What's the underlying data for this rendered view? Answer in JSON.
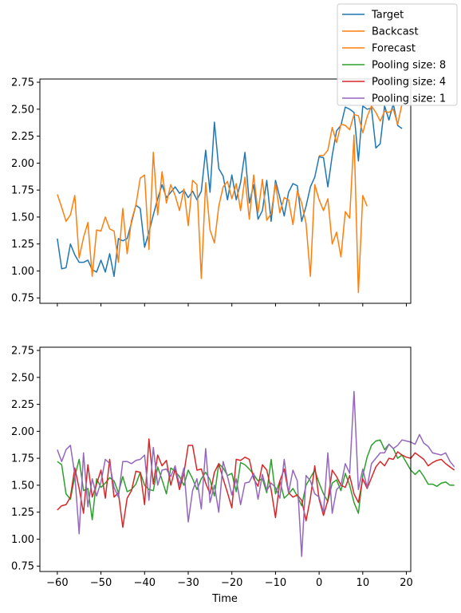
{
  "chart_data": {
    "type": "line",
    "xlabel": "Time",
    "xlim": [
      -64,
      21
    ],
    "ylim": [
      0.7,
      2.78
    ],
    "x_ticks": [
      -60,
      -50,
      -40,
      -30,
      -20,
      -10,
      0,
      10,
      20
    ],
    "x_tick_labels": [
      "−60",
      "−50",
      "−40",
      "−30",
      "−20",
      "−10",
      "0",
      "10",
      "20"
    ],
    "y_ticks": [
      0.75,
      1.0,
      1.25,
      1.5,
      1.75,
      2.0,
      2.25,
      2.5,
      2.75
    ],
    "y_tick_labels": [
      "0.75",
      "1.00",
      "1.25",
      "1.50",
      "1.75",
      "2.00",
      "2.25",
      "2.50",
      "2.75"
    ],
    "grid": false,
    "legend_position": "top-right",
    "legend": [
      {
        "name": "Target",
        "color": "#1f77b4"
      },
      {
        "name": "Backcast",
        "color": "#ff7f0e"
      },
      {
        "name": "Forecast",
        "color": "#ff7f0e"
      },
      {
        "name": "Pooling size: 8",
        "color": "#2ca02c"
      },
      {
        "name": "Pooling size: 4",
        "color": "#d62728"
      },
      {
        "name": "Pooling size: 1",
        "color": "#9467bd"
      }
    ],
    "top_panel": {
      "series": [
        {
          "name": "Target",
          "color": "#1f77b4",
          "x_start": -60,
          "values": [
            1.3,
            1.02,
            1.03,
            1.25,
            1.15,
            1.08,
            1.08,
            1.1,
            1.01,
            0.99,
            1.1,
            0.99,
            1.16,
            0.95,
            1.3,
            1.28,
            1.3,
            1.45,
            1.61,
            1.58,
            1.22,
            1.36,
            1.52,
            1.67,
            1.8,
            1.68,
            1.73,
            1.78,
            1.72,
            1.75,
            1.68,
            1.74,
            1.66,
            1.74,
            2.12,
            1.73,
            2.38,
            1.95,
            1.88,
            1.66,
            1.89,
            1.66,
            1.82,
            2.1,
            1.63,
            1.8,
            1.48,
            1.56,
            1.84,
            1.46,
            1.84,
            1.68,
            1.51,
            1.73,
            1.81,
            1.79,
            1.46,
            1.6,
            1.78,
            1.87,
            2.06,
            2.05,
            1.78,
            2.07,
            2.3,
            2.35,
            2.52,
            2.5,
            2.47,
            2.02,
            2.53,
            2.5,
            2.51,
            2.14,
            2.18,
            2.53,
            2.4,
            2.55,
            2.35,
            2.32
          ]
        },
        {
          "name": "Backcast",
          "color": "#ff7f0e",
          "x_start": -60,
          "values": [
            1.71,
            1.59,
            1.46,
            1.52,
            1.7,
            1.12,
            1.31,
            1.45,
            0.95,
            1.38,
            1.37,
            1.5,
            1.39,
            1.37,
            1.08,
            1.58,
            1.16,
            1.47,
            1.61,
            1.86,
            1.89,
            1.2,
            2.1,
            1.52,
            1.92,
            1.63,
            1.8,
            1.7,
            1.56,
            1.76,
            1.42,
            1.84,
            1.8,
            0.93,
            1.82,
            1.38,
            1.26,
            1.6,
            1.78,
            1.83,
            1.67,
            1.81,
            1.56,
            1.87,
            1.48,
            1.89,
            1.54,
            1.85,
            1.47,
            1.53,
            1.81,
            1.54,
            1.68,
            1.66,
            1.43,
            1.74,
            1.63,
            1.44,
            0.95,
            1.8,
            1.66,
            1.56,
            1.67,
            1.25,
            1.36,
            1.13,
            1.55,
            1.49,
            2.26,
            0.8,
            1.7,
            1.6
          ]
        },
        {
          "name": "Forecast",
          "color": "#ff7f0e",
          "x_start": 0,
          "values": [
            2.07,
            2.07,
            2.12,
            2.33,
            2.19,
            2.36,
            2.35,
            2.31,
            2.45,
            2.44,
            2.28,
            2.43,
            2.53,
            2.47,
            2.39,
            2.48,
            2.47,
            2.5,
            2.36,
            2.55
          ]
        }
      ]
    },
    "bottom_panel": {
      "series": [
        {
          "name": "Pooling size: 8",
          "color": "#2ca02c",
          "x_start": -60,
          "values": [
            1.72,
            1.69,
            1.42,
            1.37,
            1.58,
            1.74,
            1.45,
            1.47,
            1.18,
            1.56,
            1.48,
            1.52,
            1.57,
            1.54,
            1.43,
            1.58,
            1.44,
            1.46,
            1.51,
            1.62,
            1.5,
            1.46,
            1.45,
            1.67,
            1.55,
            1.42,
            1.66,
            1.63,
            1.58,
            1.5,
            1.64,
            1.56,
            1.46,
            1.56,
            1.62,
            1.55,
            1.4,
            1.7,
            1.66,
            1.59,
            1.61,
            1.44,
            1.71,
            1.69,
            1.65,
            1.6,
            1.54,
            1.56,
            1.43,
            1.74,
            1.42,
            1.54,
            1.38,
            1.42,
            1.47,
            1.4,
            1.31,
            1.5,
            1.57,
            1.64,
            1.52,
            1.42,
            1.35,
            1.52,
            1.55,
            1.45,
            1.61,
            1.5,
            1.34,
            1.24,
            1.59,
            1.76,
            1.87,
            1.91,
            1.92,
            1.83,
            1.88,
            1.84,
            1.75,
            1.78,
            1.71,
            1.64,
            1.6,
            1.64,
            1.58,
            1.51,
            1.51,
            1.49,
            1.52,
            1.53,
            1.5,
            1.5
          ]
        },
        {
          "name": "Pooling size: 4",
          "color": "#d62728",
          "x_start": -60,
          "values": [
            1.27,
            1.31,
            1.32,
            1.39,
            1.66,
            1.47,
            1.24,
            1.69,
            1.39,
            1.51,
            1.64,
            1.38,
            1.74,
            1.39,
            1.43,
            1.11,
            1.38,
            1.45,
            1.63,
            1.62,
            1.32,
            1.93,
            1.51,
            1.78,
            1.68,
            1.73,
            1.5,
            1.65,
            1.46,
            1.61,
            1.87,
            1.87,
            1.64,
            1.65,
            1.52,
            1.42,
            1.62,
            1.7,
            1.56,
            1.43,
            1.29,
            1.74,
            1.73,
            1.76,
            1.74,
            1.56,
            1.49,
            1.69,
            1.64,
            1.46,
            1.2,
            1.54,
            1.65,
            1.43,
            1.39,
            1.41,
            1.36,
            1.17,
            1.38,
            1.68,
            1.37,
            1.22,
            1.36,
            1.64,
            1.58,
            1.5,
            1.48,
            1.59,
            1.42,
            1.34,
            1.56,
            1.47,
            1.57,
            1.67,
            1.72,
            1.68,
            1.75,
            1.74,
            1.81,
            1.78,
            1.76,
            1.75,
            1.8,
            1.77,
            1.74,
            1.68,
            1.71,
            1.73,
            1.74,
            1.7,
            1.67,
            1.64
          ]
        },
        {
          "name": "Pooling size: 1",
          "color": "#9467bd",
          "x_start": -60,
          "values": [
            1.83,
            1.72,
            1.83,
            1.87,
            1.6,
            1.05,
            1.8,
            1.3,
            1.56,
            1.4,
            1.53,
            1.74,
            1.7,
            1.48,
            1.39,
            1.72,
            1.72,
            1.7,
            1.73,
            1.74,
            1.78,
            1.36,
            1.85,
            1.5,
            1.64,
            1.65,
            1.58,
            1.68,
            1.5,
            1.66,
            1.16,
            1.45,
            1.56,
            1.28,
            1.84,
            1.34,
            1.5,
            1.25,
            1.72,
            1.58,
            1.41,
            1.56,
            1.32,
            1.52,
            1.53,
            1.61,
            1.37,
            1.6,
            1.45,
            1.52,
            1.48,
            1.38,
            1.74,
            1.43,
            1.64,
            1.54,
            0.84,
            1.59,
            1.54,
            1.42,
            1.39,
            1.25,
            1.8,
            1.24,
            1.46,
            1.5,
            1.7,
            1.61,
            2.37,
            1.46,
            1.65,
            1.48,
            1.7,
            1.75,
            1.8,
            1.8,
            1.88,
            1.84,
            1.87,
            1.92,
            1.91,
            1.9,
            1.88,
            1.97,
            1.89,
            1.86,
            1.8,
            1.79,
            1.78,
            1.8,
            1.72,
            1.67
          ]
        }
      ]
    }
  }
}
